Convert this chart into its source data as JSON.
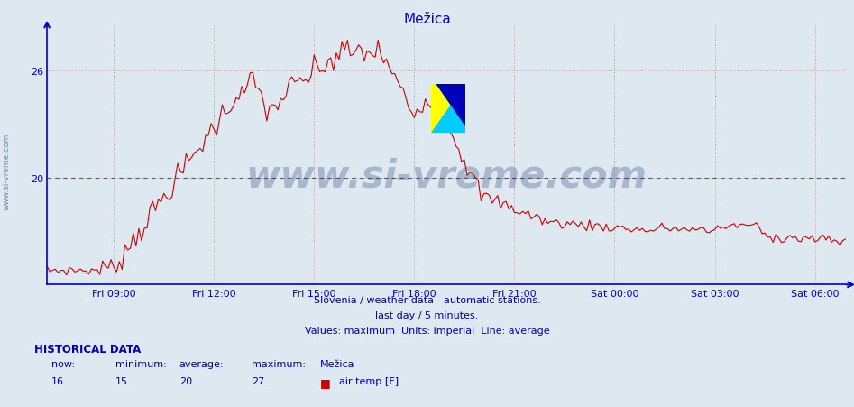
{
  "title": "Mežica",
  "title_color": "#0000cc",
  "bg_color": "#dde8f0",
  "plot_bg_color": "#dde8f0",
  "line_color": "#cc0000",
  "avg_line_color": "#cc0000",
  "axis_color": "#0000cc",
  "grid_color": "#cc9999",
  "text_color": "#0000aa",
  "watermark": "www.si-vreme.com",
  "watermark_color": "#1a3a7a",
  "watermark_alpha": 0.28,
  "subtitle1": "Slovenia / weather data - automatic stations.",
  "subtitle2": "last day / 5 minutes.",
  "subtitle3": "Values: maximum  Units: imperial  Line: average",
  "hist_label": "HISTORICAL DATA",
  "stats_headers": [
    "now:",
    "minimum:",
    "average:",
    "maximum:",
    "Mežica"
  ],
  "stats_values": [
    "16",
    "15",
    "20",
    "27",
    "air temp.[F]"
  ],
  "x_tick_labels": [
    "Fri 09:00",
    "Fri 12:00",
    "Fri 15:00",
    "Fri 18:00",
    "Fri 21:00",
    "Sat 00:00",
    "Sat 03:00",
    "Sat 06:00"
  ],
  "ylim": [
    14.0,
    28.5
  ],
  "yticks": [
    20,
    26
  ],
  "avg_line_y": 20,
  "n_points": 288,
  "logo_yellow": "#ffff00",
  "logo_cyan": "#00ccff",
  "logo_blue": "#0000bb"
}
